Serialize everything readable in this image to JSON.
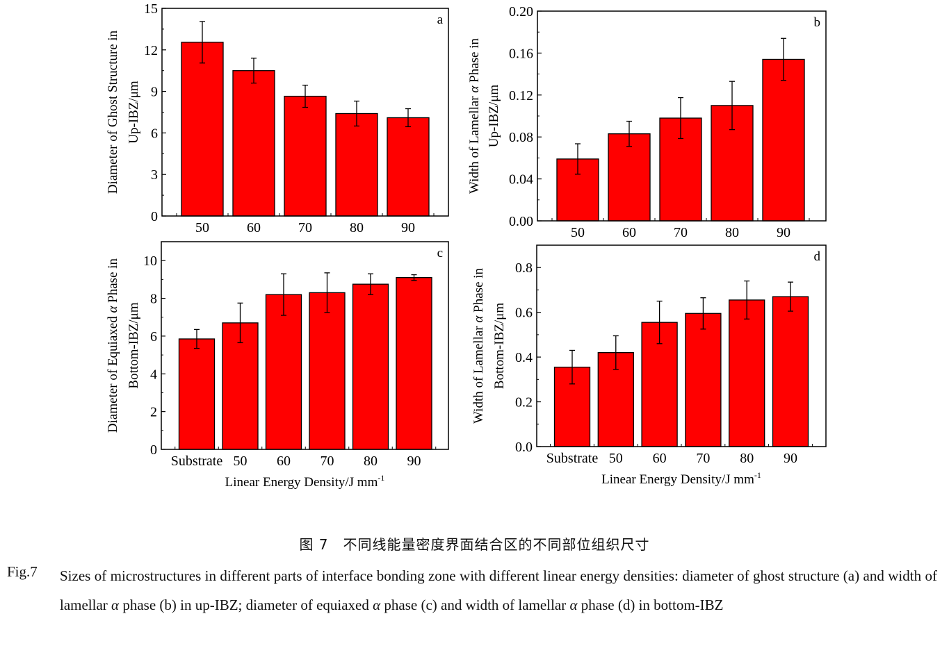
{
  "chart_data": [
    {
      "panel": "a",
      "type": "bar",
      "categories": [
        "50",
        "60",
        "70",
        "80",
        "90"
      ],
      "values": [
        12.55,
        10.5,
        8.65,
        7.4,
        7.1
      ],
      "errors": [
        1.5,
        0.9,
        0.8,
        0.9,
        0.65
      ],
      "ylabel": [
        "Diameter of Ghost Structure in",
        "Up-IBZ/μm"
      ],
      "xlabel": "",
      "ylim": [
        0,
        15
      ],
      "yticks": [
        "0",
        "3",
        "6",
        "9",
        "12",
        "15"
      ],
      "bar_color": "#ff0000"
    },
    {
      "panel": "b",
      "type": "bar",
      "categories": [
        "50",
        "60",
        "70",
        "80",
        "90"
      ],
      "values": [
        0.059,
        0.083,
        0.098,
        0.11,
        0.154
      ],
      "errors": [
        0.0145,
        0.012,
        0.0195,
        0.023,
        0.02
      ],
      "ylabel": [
        "Width of Lamellar α Phase in",
        "Up-IBZ/μm"
      ],
      "xlabel": "",
      "ylim": [
        0,
        0.2
      ],
      "yticks": [
        "0.00",
        "0.04",
        "0.08",
        "0.12",
        "0.16",
        "0.20"
      ],
      "bar_color": "#ff0000"
    },
    {
      "panel": "c",
      "type": "bar",
      "categories": [
        "Substrate",
        "50",
        "60",
        "70",
        "80",
        "90"
      ],
      "values": [
        5.85,
        6.7,
        8.2,
        8.3,
        8.75,
        9.1
      ],
      "errors": [
        0.5,
        1.05,
        1.1,
        1.05,
        0.55,
        0.15
      ],
      "ylabel": [
        "Diameter of Equiaxed α Phase in",
        "Bottom-IBZ/μm"
      ],
      "xlabel": "Linear Energy Density/J mm",
      "xlabel_sup": "-1",
      "ylim": [
        0,
        11
      ],
      "yticks": [
        "0",
        "2",
        "4",
        "6",
        "8",
        "10"
      ],
      "bar_color": "#ff0000"
    },
    {
      "panel": "d",
      "type": "bar",
      "categories": [
        "Substrate",
        "50",
        "60",
        "70",
        "80",
        "90"
      ],
      "values": [
        0.355,
        0.42,
        0.555,
        0.595,
        0.655,
        0.67
      ],
      "errors": [
        0.075,
        0.075,
        0.095,
        0.07,
        0.085,
        0.065
      ],
      "ylabel": [
        "Width of Lamellar α Phase in",
        "Bottom-IBZ/μm"
      ],
      "xlabel": "Linear Energy Density/J mm",
      "xlabel_sup": "-1",
      "ylim": [
        0,
        0.9
      ],
      "yticks": [
        "0.0",
        "0.2",
        "0.4",
        "0.6",
        "0.8"
      ],
      "bar_color": "#ff0000"
    }
  ],
  "caption": {
    "cn": "图 7　不同线能量密度界面结合区的不同部位组织尺寸",
    "label": "Fig.7",
    "en_parts": [
      "Sizes of microstructures in different parts of interface bonding zone with different linear energy densities: diameter of ghost structure (a) and width of lamellar ",
      "α",
      " phase (b) in up-IBZ; diameter of equiaxed ",
      "α",
      " phase (c) and width of lamellar ",
      "α",
      " phase (d) in bottom-IBZ"
    ]
  }
}
